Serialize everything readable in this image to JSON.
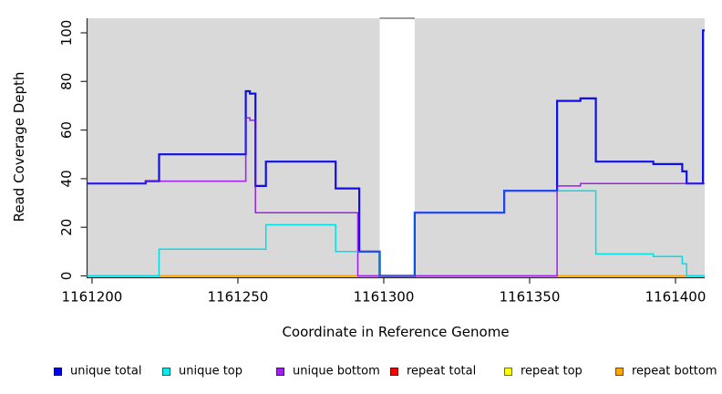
{
  "chart_data": {
    "type": "line",
    "step": true,
    "title": "",
    "xlabel": "Coordinate in Reference Genome",
    "ylabel": "Read Coverage Depth",
    "xlim": [
      1161198.3,
      1161410
    ],
    "ylim": [
      0,
      106
    ],
    "xticks": [
      1161200,
      1161250,
      1161300,
      1161350,
      1161400
    ],
    "yticks": [
      0,
      20,
      40,
      60,
      80,
      100
    ],
    "grid": false,
    "plot_bg": "#d9d9d9",
    "masked_region": {
      "x0": 1161298.6,
      "x1": 1161310.6,
      "color": "#ffffff"
    },
    "legend_position": "bottom",
    "series": [
      {
        "name": "repeat total",
        "color": "#e60000",
        "width": 1.4,
        "steps": [
          [
            1161198.3,
            0
          ]
        ]
      },
      {
        "name": "repeat top",
        "color": "#ffff00",
        "width": 1.4,
        "steps": [
          [
            1161198.3,
            0
          ]
        ]
      },
      {
        "name": "repeat bottom",
        "color": "#ffa500",
        "width": 1.6,
        "steps": [
          [
            1161198.3,
            0
          ]
        ]
      },
      {
        "name": "unique bottom",
        "color": "#a020f0",
        "width": 1.5,
        "steps": [
          [
            1161198.3,
            38
          ],
          [
            1161218.4,
            39
          ],
          [
            1161252.7,
            65
          ],
          [
            1161254.1,
            64
          ],
          [
            1161256.0,
            26
          ],
          [
            1161291.1,
            0
          ],
          [
            1161359.4,
            37
          ],
          [
            1161367.4,
            38
          ]
        ]
      },
      {
        "name": "unique top",
        "color": "#00dfe8",
        "width": 1.5,
        "steps": [
          [
            1161198.3,
            0
          ],
          [
            1161223.0,
            11
          ],
          [
            1161259.6,
            21
          ],
          [
            1161283.5,
            10
          ],
          [
            1161298.6,
            0
          ],
          [
            1161310.6,
            26
          ],
          [
            1161341.3,
            35
          ],
          [
            1161372.7,
            9
          ],
          [
            1161392.4,
            8
          ],
          [
            1161402.3,
            5
          ],
          [
            1161403.8,
            0
          ]
        ]
      },
      {
        "name": "unique total",
        "color": "#0f0fe6",
        "width": 2.2,
        "steps": [
          [
            1161198.3,
            38
          ],
          [
            1161218.4,
            39
          ],
          [
            1161223.0,
            50
          ],
          [
            1161252.7,
            76
          ],
          [
            1161254.1,
            75
          ],
          [
            1161256.0,
            37
          ],
          [
            1161259.6,
            47
          ],
          [
            1161283.5,
            36
          ],
          [
            1161291.6,
            10
          ],
          [
            1161298.6,
            0
          ],
          [
            1161310.6,
            26
          ],
          [
            1161341.3,
            35
          ],
          [
            1161359.4,
            72
          ],
          [
            1161367.4,
            73
          ],
          [
            1161372.7,
            47
          ],
          [
            1161392.4,
            46
          ],
          [
            1161402.3,
            43
          ],
          [
            1161403.8,
            38
          ],
          [
            1161409.4,
            101
          ]
        ]
      }
    ],
    "legend": [
      {
        "label": "unique total",
        "color": "#0000ee"
      },
      {
        "label": "unique top",
        "color": "#00eeee"
      },
      {
        "label": "unique bottom",
        "color": "#a020f0"
      },
      {
        "label": "repeat total",
        "color": "#ff0000"
      },
      {
        "label": "repeat top",
        "color": "#ffff00"
      },
      {
        "label": "repeat bottom",
        "color": "#ffa500"
      }
    ]
  }
}
